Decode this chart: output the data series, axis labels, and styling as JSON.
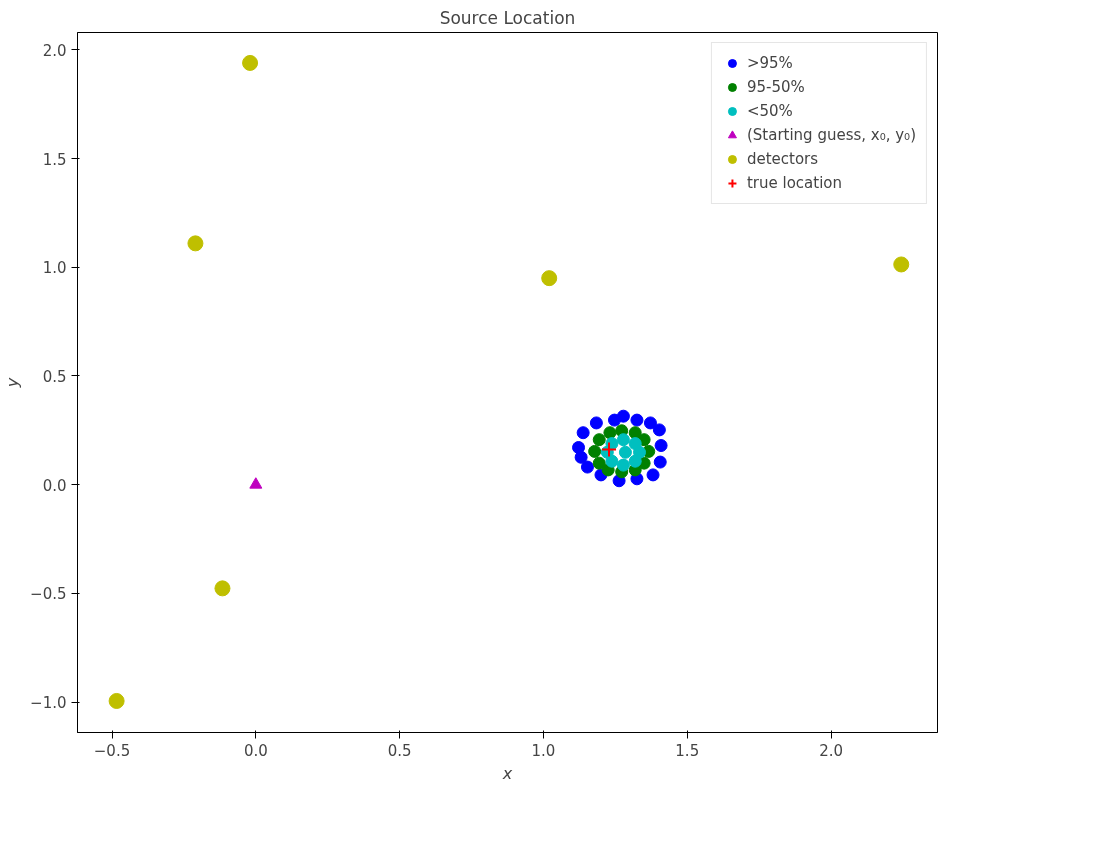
{
  "chart_data": {
    "type": "scatter",
    "title": "Source Location",
    "xlabel": "x",
    "ylabel": "y",
    "xlim": [
      -0.62,
      2.37
    ],
    "ylim": [
      -1.14,
      2.08
    ],
    "xticks": [
      {
        "value": -0.5,
        "label": "−0.5"
      },
      {
        "value": 0,
        "label": "0.0"
      },
      {
        "value": 0.5,
        "label": "0.5"
      },
      {
        "value": 1,
        "label": "1.0"
      },
      {
        "value": 1.5,
        "label": "1.5"
      },
      {
        "value": 2,
        "label": "2.0"
      }
    ],
    "yticks": [
      {
        "value": -1,
        "label": "−1.0"
      },
      {
        "value": -0.5,
        "label": "−0.5"
      },
      {
        "value": 0,
        "label": "0.0"
      },
      {
        "value": 0.5,
        "label": "0.5"
      },
      {
        "value": 1,
        "label": "1.0"
      },
      {
        "value": 1.5,
        "label": "1.5"
      },
      {
        "value": 2,
        "label": "2.0"
      }
    ],
    "grid": false,
    "legend": "top right",
    "series": [
      {
        "name": ">95%",
        "color": "#0000ff",
        "marker": "circle",
        "x": [
          1.122,
          1.138,
          1.184,
          1.247,
          1.278,
          1.325,
          1.372,
          1.403,
          1.409,
          1.406,
          1.381,
          1.325,
          1.263,
          1.2,
          1.153,
          1.131
        ],
        "values": [
          0.171,
          0.239,
          0.284,
          0.297,
          0.315,
          0.297,
          0.284,
          0.252,
          0.18,
          0.104,
          0.045,
          0.027,
          0.018,
          0.045,
          0.081,
          0.126
        ]
      },
      {
        "name": "95-50%",
        "color": "#008000",
        "marker": "circle",
        "x": [
          1.178,
          1.194,
          1.231,
          1.272,
          1.319,
          1.35,
          1.366,
          1.35,
          1.319,
          1.272,
          1.225,
          1.194
        ],
        "values": [
          0.153,
          0.207,
          0.239,
          0.248,
          0.239,
          0.207,
          0.153,
          0.099,
          0.068,
          0.059,
          0.068,
          0.099
        ]
      },
      {
        "name": "<50%",
        "color": "#00bfbf",
        "marker": "circle",
        "x": [
          1.222,
          1.238,
          1.278,
          1.319,
          1.334,
          1.319,
          1.278,
          1.238,
          1.285
        ],
        "values": [
          0.149,
          0.189,
          0.207,
          0.189,
          0.149,
          0.108,
          0.09,
          0.108,
          0.149
        ]
      },
      {
        "name": "(Starting guess, x₀, y₀)",
        "color": "#bf00bf",
        "marker": "triangle",
        "x": [
          0
        ],
        "values": [
          0
        ]
      },
      {
        "name": "detectors",
        "color": "#bfbf00",
        "marker": "circle",
        "x": [
          -0.02,
          -0.21,
          1.02,
          -0.116,
          -0.484,
          2.244
        ],
        "values": [
          1.94,
          1.11,
          0.95,
          -0.477,
          -0.995,
          1.013
        ]
      },
      {
        "name": "true location",
        "color": "#ff0000",
        "marker": "cross",
        "x": [
          1.228
        ],
        "values": [
          0.162
        ]
      }
    ]
  }
}
